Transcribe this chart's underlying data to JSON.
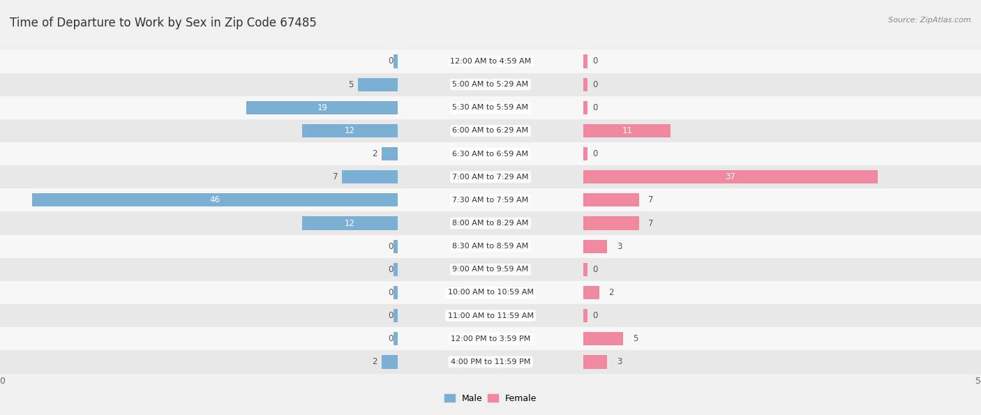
{
  "title": "Time of Departure to Work by Sex in Zip Code 67485",
  "source": "Source: ZipAtlas.com",
  "categories": [
    "12:00 AM to 4:59 AM",
    "5:00 AM to 5:29 AM",
    "5:30 AM to 5:59 AM",
    "6:00 AM to 6:29 AM",
    "6:30 AM to 6:59 AM",
    "7:00 AM to 7:29 AM",
    "7:30 AM to 7:59 AM",
    "8:00 AM to 8:29 AM",
    "8:30 AM to 8:59 AM",
    "9:00 AM to 9:59 AM",
    "10:00 AM to 10:59 AM",
    "11:00 AM to 11:59 AM",
    "12:00 PM to 3:59 PM",
    "4:00 PM to 11:59 PM"
  ],
  "male_values": [
    0,
    5,
    19,
    12,
    2,
    7,
    46,
    12,
    0,
    0,
    0,
    0,
    0,
    2
  ],
  "female_values": [
    0,
    0,
    0,
    11,
    0,
    37,
    7,
    7,
    3,
    0,
    2,
    0,
    5,
    3
  ],
  "male_color": "#7bafd4",
  "female_color": "#f088a0",
  "axis_max": 50,
  "bg_color": "#f0f0f0",
  "row_colors": [
    "#f7f7f7",
    "#e8e8e8"
  ],
  "title_fontsize": 12,
  "label_fontsize": 8.5,
  "tick_fontsize": 9,
  "bar_height": 0.58,
  "label_color_inside": "#ffffff",
  "label_color_outside": "#555555",
  "cat_label_fontsize": 8,
  "stub_size": 0.5
}
